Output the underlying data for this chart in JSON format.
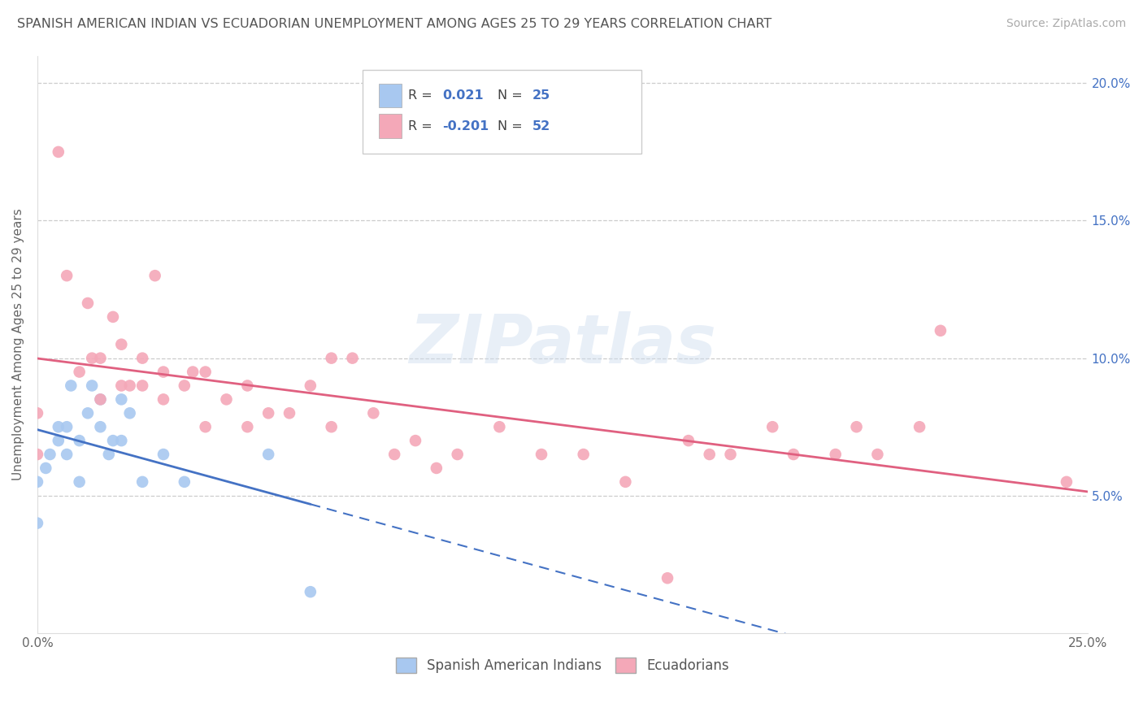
{
  "title": "SPANISH AMERICAN INDIAN VS ECUADORIAN UNEMPLOYMENT AMONG AGES 25 TO 29 YEARS CORRELATION CHART",
  "source": "Source: ZipAtlas.com",
  "ylabel": "Unemployment Among Ages 25 to 29 years",
  "xmin": 0.0,
  "xmax": 0.25,
  "ymin": 0.0,
  "ymax": 0.21,
  "x_ticks": [
    0.0,
    0.05,
    0.1,
    0.15,
    0.2,
    0.25
  ],
  "x_tick_labels": [
    "0.0%",
    "",
    "",
    "",
    "",
    "25.0%"
  ],
  "y_ticks": [
    0.0,
    0.05,
    0.1,
    0.15,
    0.2
  ],
  "y_tick_labels_right": [
    "",
    "5.0%",
    "10.0%",
    "15.0%",
    "20.0%"
  ],
  "color1": "#a8c8f0",
  "color2": "#f4a8b8",
  "line1_color": "#4472c4",
  "line2_color": "#e06080",
  "watermark": "ZIPatlas",
  "label1": "Spanish American Indians",
  "label2": "Ecuadorians",
  "blue_points_x": [
    0.0,
    0.0,
    0.002,
    0.003,
    0.005,
    0.005,
    0.007,
    0.007,
    0.008,
    0.01,
    0.01,
    0.012,
    0.013,
    0.015,
    0.015,
    0.017,
    0.018,
    0.02,
    0.02,
    0.022,
    0.025,
    0.03,
    0.035,
    0.055,
    0.065
  ],
  "blue_points_y": [
    0.04,
    0.055,
    0.06,
    0.065,
    0.07,
    0.075,
    0.065,
    0.075,
    0.09,
    0.055,
    0.07,
    0.08,
    0.09,
    0.075,
    0.085,
    0.065,
    0.07,
    0.07,
    0.085,
    0.08,
    0.055,
    0.065,
    0.055,
    0.065,
    0.015
  ],
  "pink_points_x": [
    0.0,
    0.0,
    0.005,
    0.007,
    0.01,
    0.012,
    0.013,
    0.015,
    0.015,
    0.018,
    0.02,
    0.02,
    0.022,
    0.025,
    0.025,
    0.028,
    0.03,
    0.03,
    0.035,
    0.037,
    0.04,
    0.04,
    0.045,
    0.05,
    0.05,
    0.055,
    0.06,
    0.065,
    0.07,
    0.07,
    0.075,
    0.08,
    0.085,
    0.09,
    0.095,
    0.1,
    0.11,
    0.12,
    0.13,
    0.14,
    0.15,
    0.155,
    0.16,
    0.165,
    0.175,
    0.18,
    0.19,
    0.195,
    0.2,
    0.21,
    0.215,
    0.245
  ],
  "pink_points_y": [
    0.065,
    0.08,
    0.175,
    0.13,
    0.095,
    0.12,
    0.1,
    0.1,
    0.085,
    0.115,
    0.09,
    0.105,
    0.09,
    0.1,
    0.09,
    0.13,
    0.085,
    0.095,
    0.09,
    0.095,
    0.075,
    0.095,
    0.085,
    0.09,
    0.075,
    0.08,
    0.08,
    0.09,
    0.075,
    0.1,
    0.1,
    0.08,
    0.065,
    0.07,
    0.06,
    0.065,
    0.075,
    0.065,
    0.065,
    0.055,
    0.02,
    0.07,
    0.065,
    0.065,
    0.075,
    0.065,
    0.065,
    0.075,
    0.065,
    0.075,
    0.11,
    0.055
  ]
}
